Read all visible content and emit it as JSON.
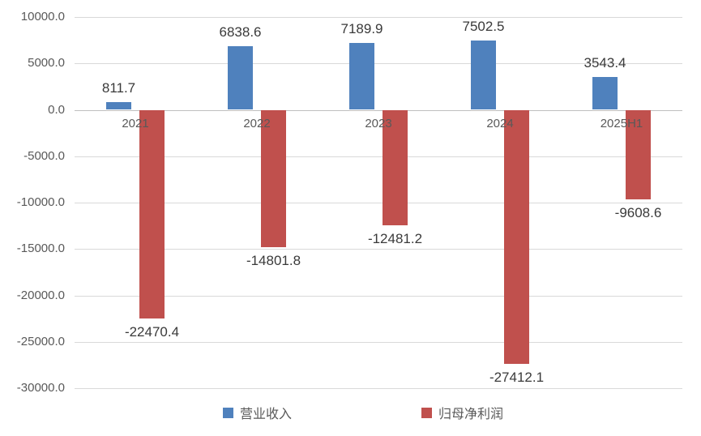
{
  "chart_data": {
    "type": "bar",
    "title": "",
    "xlabel": "",
    "ylabel": "",
    "categories": [
      "2021",
      "2022",
      "2023",
      "2024",
      "2025H1"
    ],
    "series": [
      {
        "key": "operating-revenue",
        "name": "营业收入",
        "color": "#4F81BD",
        "values": [
          811.7,
          6838.6,
          7189.9,
          7502.5,
          3543.4
        ],
        "labels": [
          "811.7",
          "6838.6",
          "7189.9",
          "7502.5",
          "3543.4"
        ]
      },
      {
        "key": "net-profit",
        "name": "归母净利润",
        "color": "#C0504D",
        "values": [
          -22470.4,
          -14801.8,
          -12481.2,
          -27412.1,
          -9608.6
        ],
        "labels": [
          "-22470.4",
          "-14801.8",
          "-12481.2",
          "-27412.1",
          "-9608.6"
        ]
      }
    ],
    "y_axis": {
      "min": -30000,
      "max": 10000,
      "step": 5000,
      "tick_labels": [
        "10000.0",
        "5000.0",
        "0.0",
        "-5000.0",
        "-10000.0",
        "-15000.0",
        "-20000.0",
        "-25000.0",
        "-30000.0"
      ]
    },
    "ylim": [
      -30000,
      10000
    ],
    "grid": true,
    "legend_position": "bottom",
    "legend_entries": [
      "营业收入",
      "归母净利润"
    ]
  },
  "colors": {
    "background": "#FFFFFF",
    "gridline": "#D9D9D9",
    "zero_line": "#BFBFBF",
    "axis_text": "#595959",
    "data_label_text": "#3A3A3A",
    "legend_text": "#595959"
  }
}
